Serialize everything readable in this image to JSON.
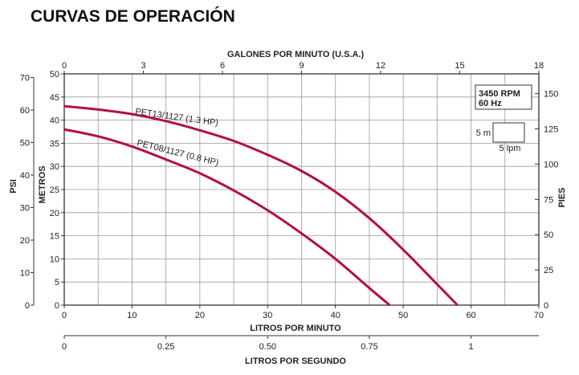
{
  "page_title": "CURVAS DE OPERACIÓN",
  "chart_data": {
    "type": "line",
    "x": {
      "label": "LITROS POR MINUTO",
      "range": [
        0,
        70
      ],
      "ticks": [
        0,
        10,
        20,
        30,
        40,
        50,
        60,
        70
      ],
      "grid_step": 5
    },
    "x_top": {
      "label": "GALONES POR MINUTO (U.S.A.)",
      "range": [
        0,
        18
      ],
      "ticks": [
        0,
        3,
        6,
        9,
        12,
        15,
        18
      ]
    },
    "x_bottom2": {
      "label": "LITROS POR SEGUNDO",
      "ticks": [
        0,
        0.25,
        0.5,
        0.75,
        1
      ],
      "tick_labels": [
        "0",
        "0.25",
        "0.50",
        "0.75",
        "1"
      ]
    },
    "y": {
      "label": "METROS",
      "range": [
        0,
        50
      ],
      "ticks": [
        0,
        5,
        10,
        15,
        20,
        25,
        30,
        35,
        40,
        45,
        50
      ]
    },
    "y_left": {
      "label": "PSI",
      "ticks": [
        0,
        10,
        20,
        30,
        40,
        50,
        60,
        70
      ]
    },
    "y_right": {
      "label": "PIES",
      "ticks": [
        0,
        25,
        50,
        75,
        100,
        125,
        150
      ]
    },
    "grid": true,
    "series": [
      {
        "name": "PET13/1127 (1.3 HP)",
        "color": "#b5103c",
        "x": [
          0,
          5,
          10,
          15,
          20,
          25,
          30,
          35,
          40,
          45,
          50,
          55,
          58
        ],
        "y": [
          43,
          42.3,
          41.3,
          39.8,
          37.8,
          35.5,
          32.5,
          29,
          24.5,
          18.8,
          12,
          4.5,
          0
        ]
      },
      {
        "name": "PET08/1127 (0.8 HP)",
        "color": "#b5103c",
        "x": [
          0,
          5,
          10,
          15,
          20,
          25,
          30,
          35,
          40,
          45,
          48
        ],
        "y": [
          38,
          36.5,
          34.3,
          31.5,
          28.5,
          24.8,
          20.5,
          15.5,
          10,
          3.7,
          0
        ]
      }
    ],
    "legend_box": {
      "rpm": "3450 RPM",
      "hz": "60 Hz"
    },
    "scale_box": {
      "vertical": "5 m",
      "horizontal": "5 lpm"
    }
  }
}
